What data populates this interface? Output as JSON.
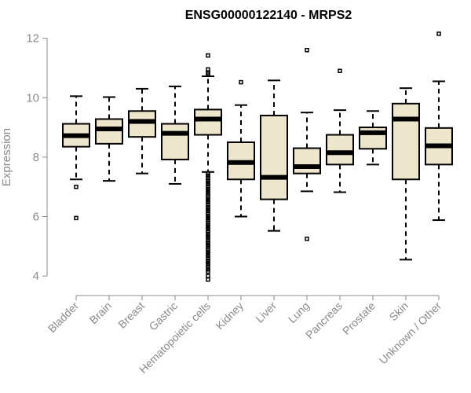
{
  "chart_data": {
    "type": "boxplot",
    "title": "ENSG00000122140 - MRPS2",
    "xlabel": "",
    "ylabel": "Expression",
    "ylim": [
      3.7,
      12.4
    ],
    "yticks": [
      4,
      6,
      8,
      10,
      12
    ],
    "box_fill": "#ede6cd",
    "axis_color": "#8a8a8a",
    "categories": [
      "Bladder",
      "Brain",
      "Breast",
      "Gastric",
      "Hematopoietic cells",
      "Kidney",
      "Liver",
      "Lung",
      "Pancreas",
      "Prostate",
      "Skin",
      "Unknown / Other"
    ],
    "boxes": [
      {
        "name": "Bladder",
        "whislo": 7.25,
        "q1": 8.35,
        "med": 8.72,
        "q3": 9.12,
        "whishi": 10.05,
        "fliers": [
          7.0,
          5.95
        ]
      },
      {
        "name": "Brain",
        "whislo": 7.2,
        "q1": 8.45,
        "med": 8.95,
        "q3": 9.28,
        "whishi": 10.02,
        "fliers": []
      },
      {
        "name": "Breast",
        "whislo": 7.45,
        "q1": 8.68,
        "med": 9.2,
        "q3": 9.55,
        "whishi": 10.3,
        "fliers": []
      },
      {
        "name": "Gastric",
        "whislo": 7.1,
        "q1": 7.92,
        "med": 8.8,
        "q3": 9.12,
        "whishi": 10.38,
        "fliers": []
      },
      {
        "name": "Hematopoietic cells",
        "whislo": 7.5,
        "q1": 8.75,
        "med": 9.28,
        "q3": 9.6,
        "whishi": 10.72,
        "fliers": [
          11.42,
          10.95,
          10.85,
          10.8,
          7.45,
          7.38,
          7.3,
          7.22,
          7.15,
          7.08,
          7.0,
          6.92,
          6.85,
          6.78,
          6.7,
          6.62,
          6.55,
          6.48,
          6.4,
          6.32,
          6.25,
          6.18,
          6.1,
          6.02,
          5.95,
          5.88,
          5.8,
          5.72,
          5.65,
          5.58,
          5.5,
          5.42,
          5.35,
          5.28,
          5.2,
          5.12,
          5.05,
          4.98,
          4.9,
          4.82,
          4.75,
          4.68,
          4.6,
          4.52,
          4.45,
          4.38,
          4.3,
          4.22,
          4.15,
          4.0,
          3.88
        ]
      },
      {
        "name": "Kidney",
        "whislo": 6.0,
        "q1": 7.25,
        "med": 7.82,
        "q3": 8.5,
        "whishi": 9.75,
        "fliers": [
          10.52
        ]
      },
      {
        "name": "Liver",
        "whislo": 5.52,
        "q1": 6.58,
        "med": 7.32,
        "q3": 9.4,
        "whishi": 10.58,
        "fliers": []
      },
      {
        "name": "Lung",
        "whislo": 6.85,
        "q1": 7.45,
        "med": 7.68,
        "q3": 8.3,
        "whishi": 9.5,
        "fliers": [
          11.6,
          5.25
        ]
      },
      {
        "name": "Pancreas",
        "whislo": 6.82,
        "q1": 7.75,
        "med": 8.15,
        "q3": 8.75,
        "whishi": 9.58,
        "fliers": [
          10.9
        ]
      },
      {
        "name": "Prostate",
        "whislo": 7.75,
        "q1": 8.28,
        "med": 8.82,
        "q3": 9.0,
        "whishi": 9.55,
        "fliers": []
      },
      {
        "name": "Skin",
        "whislo": 4.55,
        "q1": 7.25,
        "med": 9.28,
        "q3": 9.8,
        "whishi": 10.32,
        "fliers": []
      },
      {
        "name": "Unknown / Other",
        "whislo": 5.88,
        "q1": 7.75,
        "med": 8.38,
        "q3": 8.98,
        "whishi": 10.55,
        "fliers": [
          12.15
        ]
      }
    ]
  }
}
